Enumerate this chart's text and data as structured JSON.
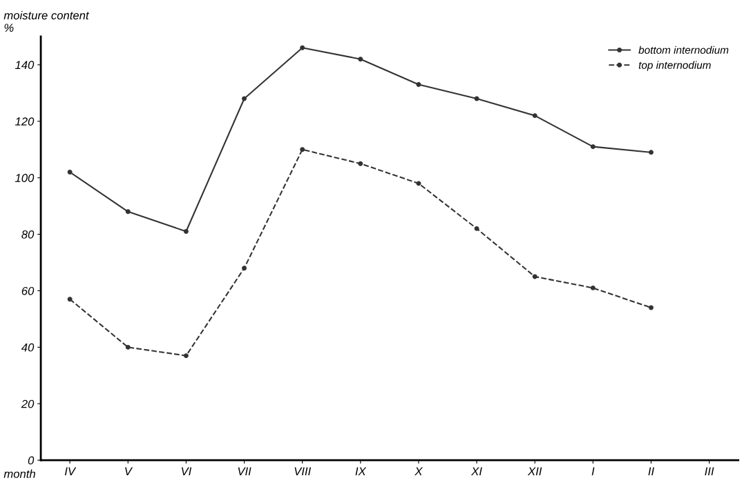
{
  "chart_data": {
    "type": "line",
    "ylabel": "moisture content\n%",
    "xlabel": "month",
    "categories": [
      "IV",
      "V",
      "VI",
      "VII",
      "VIII",
      "IX",
      "X",
      "XI",
      "XII",
      "I",
      "II",
      "III"
    ],
    "series": [
      {
        "name": "bottom internodium",
        "color": "#333333",
        "line_style": "solid",
        "values": [
          102,
          88,
          81,
          128,
          146,
          142,
          133,
          128,
          122,
          111,
          109,
          null
        ]
      },
      {
        "name": "top internodium",
        "color": "#333333",
        "line_style": "dashed",
        "values": [
          57,
          40,
          37,
          68,
          110,
          105,
          98,
          82,
          65,
          61,
          54,
          null
        ]
      }
    ],
    "ylim": [
      0,
      150
    ],
    "yticks": [
      0,
      20,
      40,
      60,
      80,
      100,
      120,
      140
    ],
    "marker": "circle",
    "legend": "top right",
    "grid": false
  }
}
